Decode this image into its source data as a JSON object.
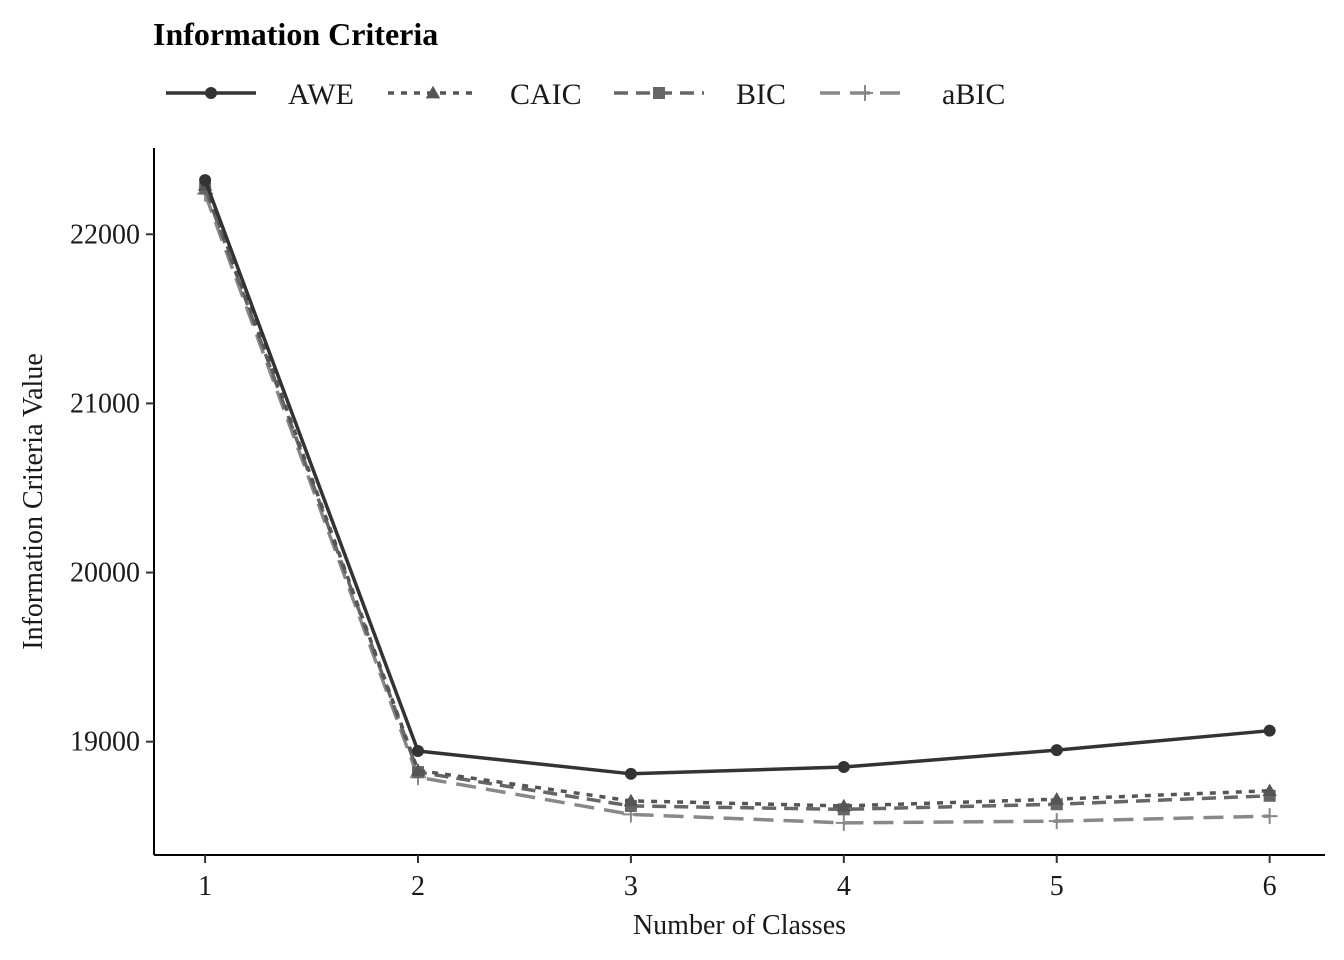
{
  "chart_data": {
    "type": "line",
    "title": "Information Criteria",
    "xlabel": "Number of Classes",
    "ylabel": "Information Criteria Value",
    "x": [
      1,
      2,
      3,
      4,
      5,
      6
    ],
    "xticks": [
      "1",
      "2",
      "3",
      "4",
      "5",
      "6"
    ],
    "yticks": [
      19000,
      20000,
      21000,
      22000
    ],
    "xlim": [
      0.76,
      6.26
    ],
    "ylim": [
      18330,
      22510
    ],
    "grid": false,
    "legend_position": "top-left",
    "series": [
      {
        "name": "AWE",
        "values": [
          22320,
          18945,
          18810,
          18850,
          18950,
          19065
        ],
        "color": "#333333",
        "marker": "circle",
        "dash": "solid"
      },
      {
        "name": "CAIC",
        "values": [
          22290,
          18830,
          18650,
          18620,
          18660,
          18710
        ],
        "color": "#555555",
        "marker": "triangle",
        "dash": "dotted"
      },
      {
        "name": "BIC",
        "values": [
          22270,
          18820,
          18620,
          18600,
          18630,
          18680
        ],
        "color": "#666666",
        "marker": "square",
        "dash": "dashed"
      },
      {
        "name": "aBIC",
        "values": [
          22240,
          18790,
          18570,
          18520,
          18530,
          18560
        ],
        "color": "#888888",
        "marker": "plus",
        "dash": "longdash"
      }
    ]
  }
}
